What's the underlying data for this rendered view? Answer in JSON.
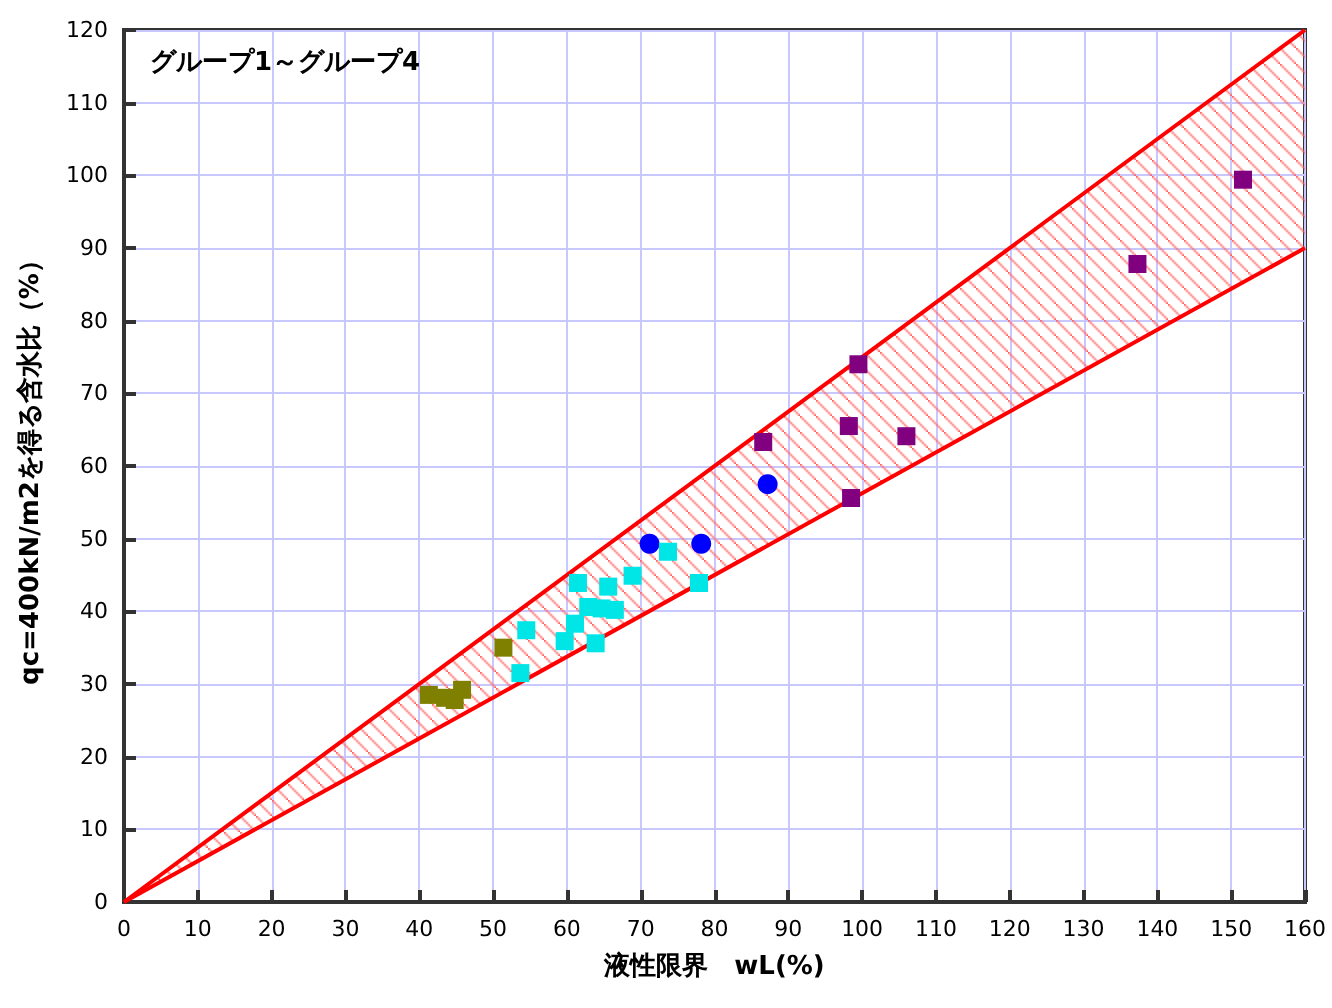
{
  "chart_data": {
    "type": "scatter",
    "xlabel": "液性限界　wL(%)",
    "ylabel": "qc=400kN/m2を得る含水比（%）",
    "annotations": [
      "グループ1～グループ4"
    ],
    "xlim": [
      0,
      160
    ],
    "xticks": [
      0,
      10,
      20,
      30,
      40,
      50,
      60,
      70,
      80,
      90,
      100,
      110,
      120,
      130,
      140,
      150,
      160
    ],
    "ylim": [
      0,
      120
    ],
    "yticks": [
      0,
      10,
      20,
      30,
      40,
      50,
      60,
      70,
      80,
      90,
      100,
      110,
      120
    ],
    "grid": true,
    "series": [
      {
        "type": "line",
        "color": "#ff0000",
        "marker": "none",
        "x": [
          0,
          160
        ],
        "values": [
          0,
          120
        ],
        "lower": [
          0,
          90
        ],
        "upper": [
          0,
          120
        ]
      },
      {
        "type": "line",
        "color": "#ff0000",
        "marker": "none",
        "x": [
          0,
          160
        ],
        "values": [
          0,
          90
        ]
      },
      {
        "color": "#800080",
        "marker": "square",
        "x": [
          99.5,
          86.6,
          98.2,
          106,
          98.5,
          137.3,
          151.6
        ],
        "values": [
          74,
          63.3,
          65.5,
          64.1,
          55.6,
          87.8,
          99.4
        ]
      },
      {
        "color": "#0000ff",
        "marker": "circle",
        "x": [
          71.2,
          78.2,
          87.2
        ],
        "values": [
          49.3,
          49.3,
          57.5
        ]
      },
      {
        "color": "#00e5e5",
        "marker": "square",
        "x": [
          73.7,
          68.9,
          77.9,
          61.5,
          65.6,
          62.9,
          64.7,
          66.5,
          61.1,
          54.5,
          59.7,
          63.9,
          53.7
        ],
        "values": [
          48.2,
          44.9,
          43.9,
          43.9,
          43.4,
          40.6,
          40.4,
          40.2,
          38.3,
          37.4,
          35.9,
          35.6,
          31.5
        ]
      },
      {
        "color": "#808000",
        "marker": "square",
        "x": [
          51.4,
          45.8,
          43.5,
          41.3,
          44.8
        ],
        "values": [
          35,
          29.2,
          28.1,
          28.5,
          27.8
        ]
      }
    ]
  }
}
